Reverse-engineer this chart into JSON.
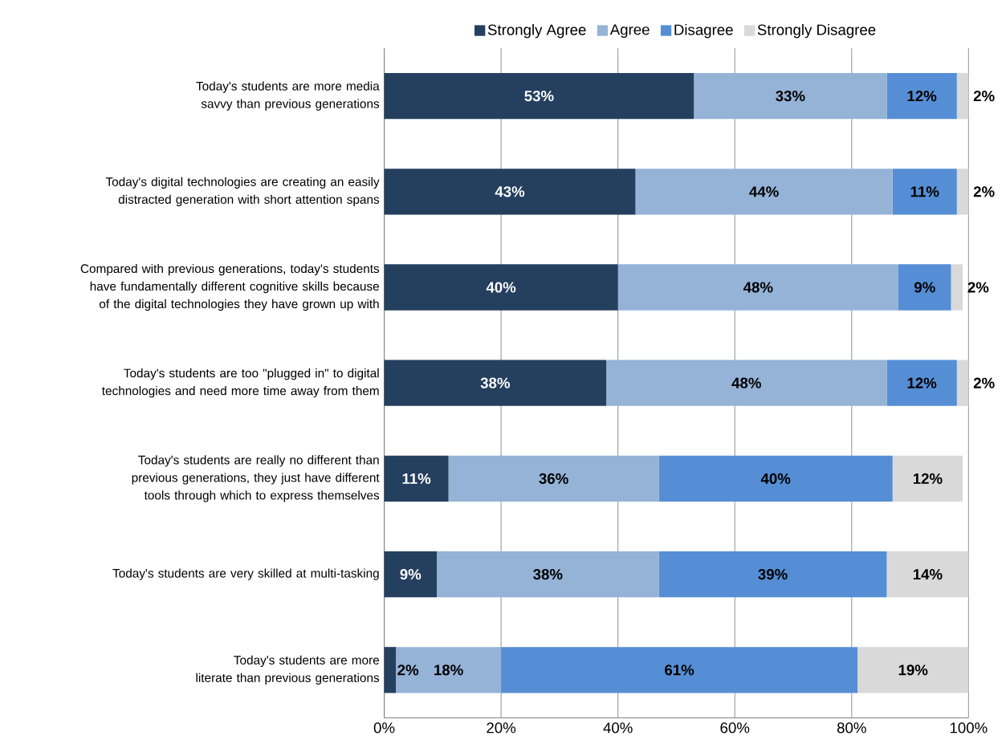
{
  "chart_data": {
    "type": "bar",
    "orientation": "horizontal",
    "stacked": true,
    "legend": "top",
    "grid": "x",
    "categories": [
      "Today's students are more media savvy than previous generations",
      "Today's digital technologies are creating an easily distracted generation with short attention spans",
      "Compared with previous generations, today's students have fundamentally different cognitive skills because of the digital technologies they have grown up with",
      "Today's students are too \"plugged in\" to digital technologies and need more time away from them",
      "Today's students are really no different than previous generations, they just have different tools through which to express themselves",
      "Today's students are very skilled at multi-tasking",
      "Today's students are more literate than previous generations"
    ],
    "series": [
      {
        "name": "Strongly Agree",
        "color": "#253f5f",
        "values": [
          53,
          43,
          40,
          38,
          11,
          9,
          2
        ],
        "value_labels": [
          "53%",
          "43%",
          "40%",
          "38%",
          "11%",
          "9%",
          "2%"
        ]
      },
      {
        "name": "Agree",
        "color": "#95b3d7",
        "values": [
          33,
          44,
          48,
          48,
          36,
          38,
          18
        ],
        "value_labels": [
          "33%",
          "44%",
          "48%",
          "48%",
          "36%",
          "38%",
          "18%"
        ]
      },
      {
        "name": "Disagree",
        "color": "#558ed5",
        "values": [
          12,
          11,
          9,
          12,
          40,
          39,
          61
        ],
        "value_labels": [
          "12%",
          "11%",
          "9%",
          "12%",
          "40%",
          "39%",
          "61%"
        ]
      },
      {
        "name": "Strongly Disagree",
        "color": "#d9d9d9",
        "values": [
          2,
          2,
          2,
          2,
          12,
          14,
          19
        ],
        "value_labels": [
          "2%",
          "2%",
          "2%",
          "2%",
          "12%",
          "14%",
          "19%"
        ]
      }
    ],
    "xlim": [
      0,
      100
    ],
    "xticks": [
      {
        "value": 0,
        "label": "0%"
      },
      {
        "value": 20,
        "label": "20%"
      },
      {
        "value": 40,
        "label": "40%"
      },
      {
        "value": 60,
        "label": "60%"
      },
      {
        "value": 80,
        "label": "80%"
      },
      {
        "value": 100,
        "label": "100%"
      }
    ]
  }
}
